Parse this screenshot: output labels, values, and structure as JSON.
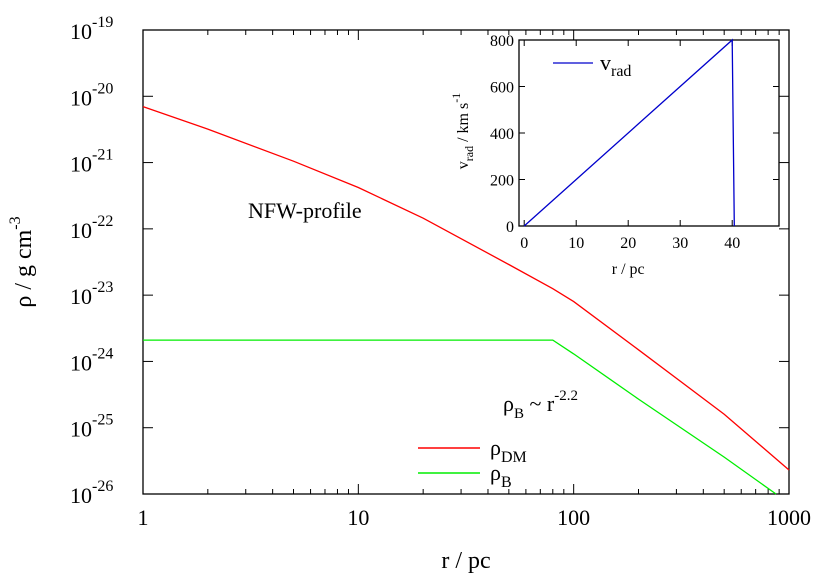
{
  "chart_data": [
    {
      "type": "line",
      "xscale": "log",
      "yscale": "log",
      "xlim": [
        1,
        1000
      ],
      "ylim": [
        1e-26,
        1e-19
      ],
      "xlabel": "r / pc",
      "ylabel": "ρ / g cm",
      "ylabel_sup": "-3",
      "x_ticks": [
        {
          "value": 1,
          "label": "1"
        },
        {
          "value": 10,
          "label": "10"
        },
        {
          "value": 100,
          "label": "100"
        },
        {
          "value": 1000,
          "label": "1000"
        }
      ],
      "y_ticks": [
        {
          "exp": -19,
          "base": "10",
          "sup": "-19"
        },
        {
          "exp": -20,
          "base": "10",
          "sup": "-20"
        },
        {
          "exp": -21,
          "base": "10",
          "sup": "-21"
        },
        {
          "exp": -22,
          "base": "10",
          "sup": "-22"
        },
        {
          "exp": -23,
          "base": "10",
          "sup": "-23"
        },
        {
          "exp": -24,
          "base": "10",
          "sup": "-24"
        },
        {
          "exp": -25,
          "base": "10",
          "sup": "-25"
        },
        {
          "exp": -26,
          "base": "10",
          "sup": "-26"
        }
      ],
      "legend": "bottom-center",
      "series": [
        {
          "name": "ρ",
          "name_sub": "DM",
          "color": "#ff0000",
          "x": [
            1,
            2,
            5,
            10,
            20,
            50,
            80,
            100,
            200,
            500,
            1000
          ],
          "y": [
            7e-21,
            3.2e-21,
            1.05e-21,
            4.2e-22,
            1.45e-22,
            2.9e-23,
            1.25e-23,
            8e-24,
            1.5e-24,
            1.6e-25,
            2.3e-26
          ]
        },
        {
          "name": "ρ",
          "name_sub": "B",
          "color": "#00ee00",
          "x": [
            1,
            80,
            100,
            200,
            500,
            870
          ],
          "y": [
            2.1e-24,
            2.1e-24,
            1.3e-24,
            2.7e-25,
            3.6e-26,
            1e-26
          ]
        }
      ],
      "annotations": [
        {
          "id": "nfw",
          "text": "NFW-profile"
        },
        {
          "id": "slope",
          "base": "ρ",
          "sub": "B",
          "mid": " ~ r",
          "sup": "-2.2"
        }
      ]
    },
    {
      "type": "line",
      "xlim": [
        -1,
        49
      ],
      "ylim": [
        0,
        800
      ],
      "xlabel": "r / pc",
      "ylabel": "v",
      "ylabel_sub": "rad",
      "ylabel_tail": " / km s",
      "ylabel_sup": "-1",
      "x_ticks": [
        0,
        10,
        20,
        30,
        40
      ],
      "y_ticks": [
        0,
        200,
        400,
        600,
        800
      ],
      "legend": "top-left",
      "series": [
        {
          "name": "v",
          "name_sub": "rad",
          "color": "#0000cc",
          "x": [
            0,
            40,
            40.4
          ],
          "y": [
            0,
            800,
            0
          ]
        }
      ]
    }
  ]
}
